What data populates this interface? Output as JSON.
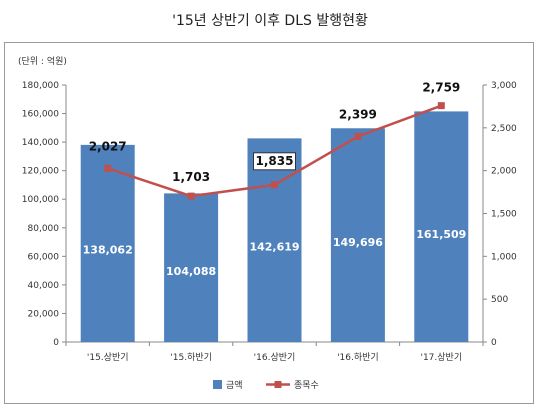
{
  "chart_data": {
    "type": "bar",
    "title": "'15년 상반기 이후 DLS 발행현황",
    "unit_label": "(단위 : 억원)",
    "categories": [
      "'15.상반기",
      "'15.하반기",
      "'16.상반기",
      "'16.하반기",
      "'17.상반기"
    ],
    "series": [
      {
        "name": "금액",
        "type": "bar",
        "axis": "left",
        "color": "#4f81bd",
        "values": [
          138062,
          104088,
          142619,
          149696,
          161509
        ],
        "labels": [
          "138,062",
          "104,088",
          "142,619",
          "149,696",
          "161,509"
        ]
      },
      {
        "name": "종목수",
        "type": "line",
        "axis": "right",
        "color": "#c0504d",
        "values": [
          2027,
          1703,
          1835,
          2399,
          2759
        ],
        "labels": [
          "2,027",
          "1,703",
          "1,835",
          "2,399",
          "2,759"
        ]
      }
    ],
    "y_left": {
      "min": 0,
      "max": 180000,
      "ticks": [
        "0",
        "20,000",
        "40,000",
        "60,000",
        "80,000",
        "100,000",
        "120,000",
        "140,000",
        "160,000",
        "180,000"
      ]
    },
    "y_right": {
      "min": 0,
      "max": 3000,
      "ticks": [
        "0",
        "500",
        "1,000",
        "1,500",
        "2,000",
        "2,500",
        "3,000"
      ]
    },
    "grid": false,
    "legend": "bottom-center"
  }
}
